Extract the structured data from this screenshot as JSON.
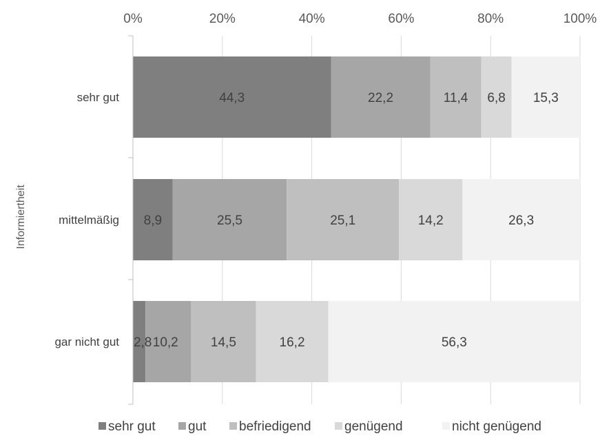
{
  "chart_data": {
    "type": "bar",
    "orientation": "horizontal",
    "stacked": true,
    "percent": true,
    "title": "",
    "xlabel": "",
    "ylabel": "Informiertheit",
    "xlim": [
      0,
      100
    ],
    "x_ticks": [
      "0%",
      "20%",
      "40%",
      "60%",
      "80%",
      "100%"
    ],
    "x_axis_position": "top",
    "grid": true,
    "legend_position": "bottom",
    "categories": [
      "sehr gut",
      "mittelmäßig",
      "gar nicht gut"
    ],
    "series": [
      {
        "name": "sehr gut",
        "color": "#7f7f7f",
        "values": [
          44.3,
          8.9,
          2.8
        ]
      },
      {
        "name": "gut",
        "color": "#a6a6a6",
        "values": [
          22.2,
          25.5,
          10.2
        ]
      },
      {
        "name": "befriedigend",
        "color": "#bfbfbf",
        "values": [
          11.4,
          25.1,
          14.5
        ]
      },
      {
        "name": "genügend",
        "color": "#d9d9d9",
        "values": [
          6.8,
          14.2,
          16.2
        ]
      },
      {
        "name": "nicht genügend",
        "color": "#f2f2f2",
        "values": [
          15.3,
          26.3,
          56.3
        ]
      }
    ],
    "value_labels": [
      [
        "44,3",
        "22,2",
        "11,4",
        "6,8",
        "15,3"
      ],
      [
        "8,9",
        "25,5",
        "25,1",
        "14,2",
        "26,3"
      ],
      [
        "2,8",
        "10,2",
        "14,5",
        "16,2",
        "56,3"
      ]
    ]
  }
}
